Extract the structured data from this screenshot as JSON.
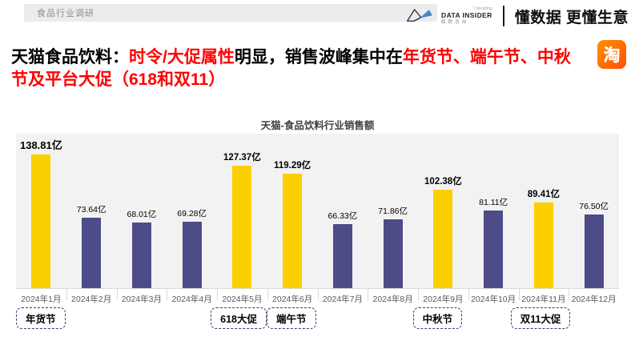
{
  "header": {
    "page_label": "食品行业调研"
  },
  "brand": {
    "logo_name": "DATA INSIDER",
    "logo_consulting": "Consulting",
    "logo_sub": "解数咨询",
    "slogan": "懂数据 更懂生意",
    "taobao_char": "淘"
  },
  "title": {
    "segments": [
      {
        "text": "天猫食品饮料：",
        "color": "black"
      },
      {
        "text": "时令/大促属性",
        "color": "red"
      },
      {
        "text": "明显，销售波峰集中在",
        "color": "black"
      },
      {
        "text": "年货节、端午节、中秋节及平台大促（618和双11）",
        "color": "red"
      }
    ]
  },
  "colors": {
    "accent_red": "#ff0000",
    "bar_yellow": "#fccf00",
    "bar_purple": "#4d4b88",
    "panel_gray": "#f2f2f2",
    "taobao_orange": "#ff5000"
  },
  "chart_data": {
    "type": "bar",
    "title": "天猫-食品饮料行业销售额",
    "unit": "亿",
    "categories": [
      "2024年1月",
      "2024年2月",
      "2024年3月",
      "2024年4月",
      "2024年5月",
      "2024年6月",
      "2024年7月",
      "2024年8月",
      "2024年9月",
      "2024年10月",
      "2024年11月",
      "2024年12月"
    ],
    "values": [
      138.81,
      73.64,
      68.01,
      69.28,
      127.37,
      119.29,
      66.33,
      71.86,
      102.38,
      81.11,
      89.41,
      76.5
    ],
    "value_labels": [
      "138.81亿",
      "73.64亿",
      "68.01亿",
      "69.28亿",
      "127.37亿",
      "119.29亿",
      "66.33亿",
      "71.86亿",
      "102.38亿",
      "81.11亿",
      "89.41亿",
      "76.50亿"
    ],
    "highlighted": [
      true,
      false,
      false,
      false,
      true,
      true,
      false,
      false,
      true,
      false,
      true,
      false
    ],
    "emphasis": [
      2,
      0,
      0,
      0,
      1,
      1,
      0,
      0,
      1,
      0,
      1,
      0
    ],
    "callouts": [
      {
        "index": 0,
        "label": "年货节"
      },
      {
        "index": 4,
        "label": "618大促"
      },
      {
        "index": 5,
        "label": "端午节"
      },
      {
        "index": 8,
        "label": "中秋节"
      },
      {
        "index": 10,
        "label": "双11大促"
      }
    ],
    "ylim": [
      0,
      140
    ],
    "grid": false,
    "legend": null
  }
}
